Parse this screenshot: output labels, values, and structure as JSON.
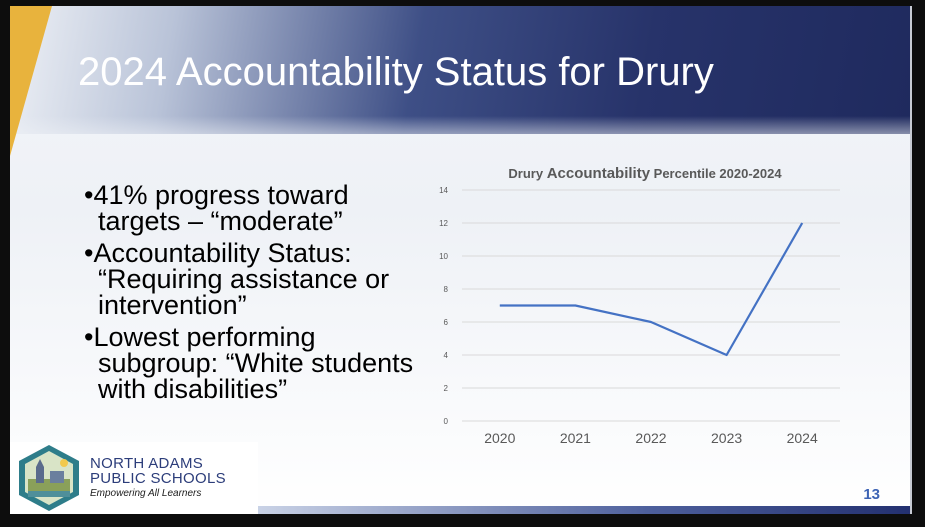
{
  "slide": {
    "title": "2024 Accountability Status for Drury",
    "bullets": [
      "41% progress toward targets – “moderate”",
      "Accountability Status: “Requiring assistance or intervention”",
      "Lowest performing subgroup: “White students with disabilities”"
    ],
    "page_number": "13"
  },
  "logo": {
    "line1": "NORTH ADAMS",
    "line2": "PUBLIC SCHOOLS",
    "tagline": "Empowering All Learners"
  },
  "colors": {
    "header_dark": "#1f2a5e",
    "accent_gold": "#e8b33d",
    "line_series": "#4472c4",
    "page_number": "#3c63b4"
  },
  "chart_data": {
    "type": "line",
    "title_parts": [
      "Drury ",
      "Accountability",
      " Percentile 2020-2024"
    ],
    "categories": [
      "2020",
      "2021",
      "2022",
      "2023",
      "2024"
    ],
    "values": [
      7,
      7,
      6,
      4,
      12
    ],
    "ylim": [
      0,
      14
    ],
    "yticks": [
      0,
      2,
      4,
      6,
      8,
      10,
      12,
      14
    ],
    "grid": true,
    "xlabel": "",
    "ylabel": ""
  }
}
